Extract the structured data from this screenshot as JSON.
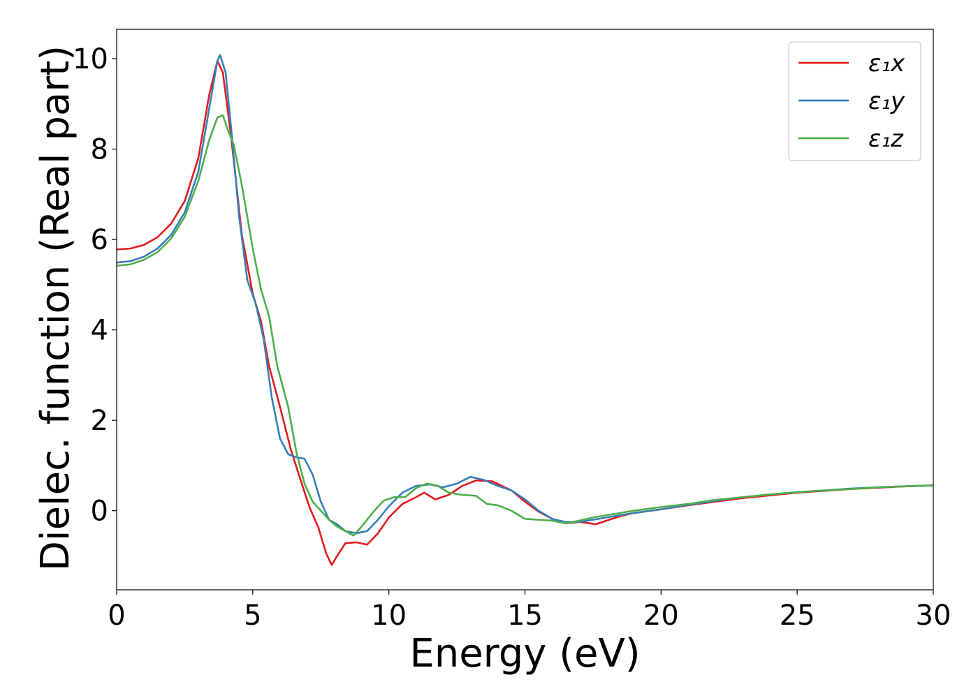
{
  "chart_data": {
    "type": "line",
    "xlabel": "Energy (eV)",
    "ylabel": "Dielec. function (Real part)",
    "xlim": [
      0,
      30
    ],
    "ylim": [
      -1.75,
      10.65
    ],
    "xticks": [
      0,
      5,
      10,
      15,
      20,
      25,
      30
    ],
    "yticks": [
      0,
      2,
      4,
      6,
      8,
      10
    ],
    "grid": false,
    "legend_position": "top-right",
    "series": [
      {
        "name": "ε₁x",
        "color": "#e41a1c",
        "points": [
          [
            0,
            5.78
          ],
          [
            0.5,
            5.8
          ],
          [
            1.0,
            5.88
          ],
          [
            1.5,
            6.05
          ],
          [
            2.0,
            6.35
          ],
          [
            2.5,
            6.85
          ],
          [
            3.0,
            7.8
          ],
          [
            3.4,
            9.2
          ],
          [
            3.7,
            9.95
          ],
          [
            3.9,
            9.7
          ],
          [
            4.2,
            8.3
          ],
          [
            4.6,
            6.1
          ],
          [
            5.0,
            4.8
          ],
          [
            5.3,
            4.2
          ],
          [
            5.6,
            3.2
          ],
          [
            6.0,
            2.3
          ],
          [
            6.4,
            1.35
          ],
          [
            6.8,
            0.6
          ],
          [
            7.1,
            0.05
          ],
          [
            7.4,
            -0.35
          ],
          [
            7.7,
            -0.95
          ],
          [
            7.9,
            -1.2
          ],
          [
            8.1,
            -1.0
          ],
          [
            8.4,
            -0.72
          ],
          [
            8.8,
            -0.7
          ],
          [
            9.2,
            -0.75
          ],
          [
            9.6,
            -0.5
          ],
          [
            10.0,
            -0.15
          ],
          [
            10.5,
            0.15
          ],
          [
            11.0,
            0.3
          ],
          [
            11.3,
            0.4
          ],
          [
            11.7,
            0.25
          ],
          [
            12.2,
            0.35
          ],
          [
            12.7,
            0.55
          ],
          [
            13.2,
            0.67
          ],
          [
            13.8,
            0.65
          ],
          [
            14.5,
            0.45
          ],
          [
            15.0,
            0.2
          ],
          [
            15.5,
            -0.02
          ],
          [
            16.0,
            -0.18
          ],
          [
            16.5,
            -0.28
          ],
          [
            17.0,
            -0.25
          ],
          [
            17.3,
            -0.27
          ],
          [
            17.6,
            -0.3
          ],
          [
            18.0,
            -0.22
          ],
          [
            18.5,
            -0.12
          ],
          [
            19.0,
            -0.05
          ],
          [
            20.0,
            0.03
          ],
          [
            21.0,
            0.12
          ],
          [
            22.0,
            0.2
          ],
          [
            23.0,
            0.28
          ],
          [
            24.0,
            0.34
          ],
          [
            25.0,
            0.4
          ],
          [
            26.0,
            0.44
          ],
          [
            27.0,
            0.48
          ],
          [
            28.0,
            0.51
          ],
          [
            29.0,
            0.54
          ],
          [
            30.0,
            0.56
          ]
        ]
      },
      {
        "name": "ε₁y",
        "color": "#377eb8",
        "points": [
          [
            0,
            5.49
          ],
          [
            0.5,
            5.52
          ],
          [
            1.0,
            5.62
          ],
          [
            1.5,
            5.8
          ],
          [
            2.0,
            6.1
          ],
          [
            2.5,
            6.6
          ],
          [
            3.0,
            7.5
          ],
          [
            3.4,
            8.9
          ],
          [
            3.7,
            9.95
          ],
          [
            3.8,
            10.08
          ],
          [
            4.0,
            9.7
          ],
          [
            4.2,
            8.5
          ],
          [
            4.5,
            6.5
          ],
          [
            4.8,
            5.1
          ],
          [
            5.1,
            4.6
          ],
          [
            5.4,
            3.8
          ],
          [
            5.7,
            2.5
          ],
          [
            6.0,
            1.6
          ],
          [
            6.3,
            1.25
          ],
          [
            6.6,
            1.18
          ],
          [
            6.9,
            1.15
          ],
          [
            7.2,
            0.8
          ],
          [
            7.5,
            0.2
          ],
          [
            7.8,
            -0.2
          ],
          [
            8.1,
            -0.3
          ],
          [
            8.4,
            -0.45
          ],
          [
            8.8,
            -0.5
          ],
          [
            9.2,
            -0.45
          ],
          [
            9.6,
            -0.2
          ],
          [
            10.0,
            0.1
          ],
          [
            10.5,
            0.4
          ],
          [
            11.0,
            0.55
          ],
          [
            11.5,
            0.58
          ],
          [
            12.0,
            0.52
          ],
          [
            12.5,
            0.6
          ],
          [
            13.0,
            0.75
          ],
          [
            13.5,
            0.68
          ],
          [
            14.0,
            0.55
          ],
          [
            14.5,
            0.45
          ],
          [
            15.0,
            0.25
          ],
          [
            15.5,
            0.0
          ],
          [
            16.0,
            -0.18
          ],
          [
            16.5,
            -0.25
          ],
          [
            17.0,
            -0.25
          ],
          [
            17.5,
            -0.2
          ],
          [
            18.0,
            -0.15
          ],
          [
            18.5,
            -0.1
          ],
          [
            19.0,
            -0.05
          ],
          [
            20.0,
            0.03
          ],
          [
            21.0,
            0.13
          ],
          [
            22.0,
            0.22
          ],
          [
            23.0,
            0.3
          ],
          [
            24.0,
            0.36
          ],
          [
            25.0,
            0.41
          ],
          [
            26.0,
            0.45
          ],
          [
            27.0,
            0.49
          ],
          [
            28.0,
            0.52
          ],
          [
            29.0,
            0.54
          ],
          [
            30.0,
            0.56
          ]
        ]
      },
      {
        "name": "ε₁z",
        "color": "#4daf4a",
        "points": [
          [
            0,
            5.42
          ],
          [
            0.5,
            5.45
          ],
          [
            1.0,
            5.55
          ],
          [
            1.5,
            5.72
          ],
          [
            2.0,
            6.02
          ],
          [
            2.5,
            6.5
          ],
          [
            3.0,
            7.3
          ],
          [
            3.4,
            8.2
          ],
          [
            3.7,
            8.7
          ],
          [
            3.9,
            8.75
          ],
          [
            4.1,
            8.4
          ],
          [
            4.3,
            8.1
          ],
          [
            4.6,
            7.2
          ],
          [
            5.0,
            5.8
          ],
          [
            5.3,
            4.9
          ],
          [
            5.6,
            4.3
          ],
          [
            5.9,
            3.2
          ],
          [
            6.3,
            2.3
          ],
          [
            6.6,
            1.3
          ],
          [
            6.9,
            0.6
          ],
          [
            7.2,
            0.2
          ],
          [
            7.5,
            0.0
          ],
          [
            7.8,
            -0.2
          ],
          [
            8.1,
            -0.35
          ],
          [
            8.4,
            -0.45
          ],
          [
            8.7,
            -0.55
          ],
          [
            9.0,
            -0.35
          ],
          [
            9.4,
            -0.05
          ],
          [
            9.8,
            0.22
          ],
          [
            10.2,
            0.3
          ],
          [
            10.6,
            0.3
          ],
          [
            11.0,
            0.5
          ],
          [
            11.4,
            0.6
          ],
          [
            11.8,
            0.55
          ],
          [
            12.2,
            0.4
          ],
          [
            12.7,
            0.35
          ],
          [
            13.2,
            0.33
          ],
          [
            13.6,
            0.15
          ],
          [
            14.0,
            0.12
          ],
          [
            14.5,
            0.0
          ],
          [
            15.0,
            -0.18
          ],
          [
            15.5,
            -0.2
          ],
          [
            16.0,
            -0.22
          ],
          [
            16.5,
            -0.28
          ],
          [
            17.0,
            -0.22
          ],
          [
            17.5,
            -0.15
          ],
          [
            18.0,
            -0.1
          ],
          [
            18.5,
            -0.05
          ],
          [
            19.0,
            0.0
          ],
          [
            20.0,
            0.08
          ],
          [
            21.0,
            0.15
          ],
          [
            22.0,
            0.24
          ],
          [
            23.0,
            0.3
          ],
          [
            24.0,
            0.36
          ],
          [
            25.0,
            0.41
          ],
          [
            26.0,
            0.45
          ],
          [
            27.0,
            0.48
          ],
          [
            28.0,
            0.52
          ],
          [
            29.0,
            0.54
          ],
          [
            30.0,
            0.56
          ]
        ]
      }
    ]
  }
}
